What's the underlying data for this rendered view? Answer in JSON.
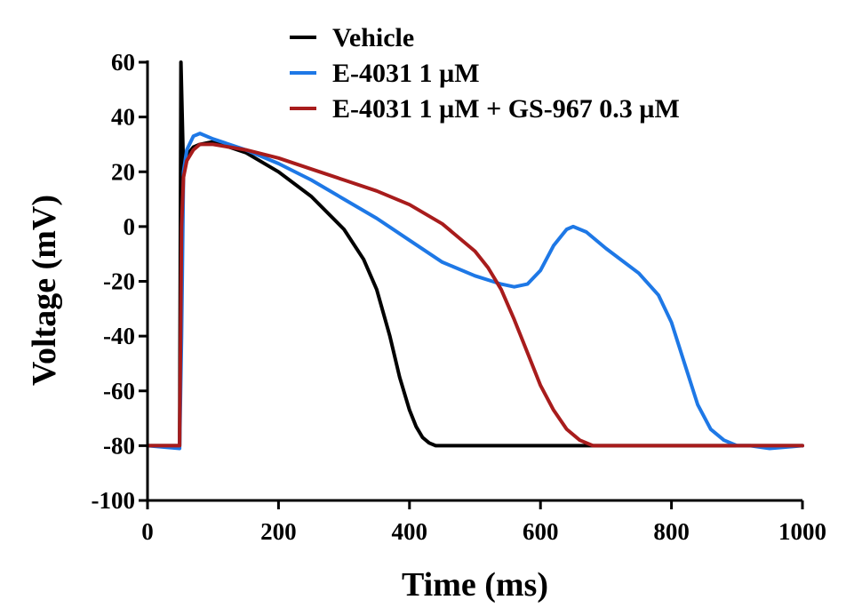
{
  "chart_data": {
    "type": "line",
    "title": "",
    "xlabel": "Time (ms)",
    "ylabel": "Voltage (mV)",
    "xlim": [
      0,
      1000
    ],
    "ylim": [
      -100,
      60
    ],
    "xticks": [
      0,
      200,
      400,
      600,
      800,
      1000
    ],
    "yticks": [
      60,
      40,
      20,
      0,
      -20,
      -40,
      -60,
      -80,
      -100
    ],
    "grid": false,
    "legend_position": "top-center",
    "series": [
      {
        "name": "Vehicle",
        "color": "#000000",
        "x": [
          0,
          49,
          50,
          51,
          55,
          60,
          70,
          80,
          100,
          150,
          200,
          250,
          300,
          330,
          350,
          370,
          385,
          400,
          410,
          420,
          430,
          440,
          450,
          460,
          480,
          500,
          600,
          700,
          800,
          900,
          1000
        ],
        "y": [
          -80,
          -80,
          -20,
          60,
          20,
          26,
          29,
          30,
          31,
          27,
          20,
          11,
          -1,
          -12,
          -23,
          -40,
          -55,
          -67,
          -73,
          -77,
          -79,
          -80,
          -80,
          -80,
          -80,
          -80,
          -80,
          -80,
          -80,
          -80,
          -80
        ]
      },
      {
        "name": "E-4031 1 µM",
        "color": "#1e78e6",
        "x": [
          0,
          49,
          52,
          55,
          60,
          70,
          80,
          100,
          150,
          200,
          250,
          300,
          350,
          400,
          450,
          500,
          540,
          560,
          580,
          600,
          620,
          640,
          650,
          670,
          700,
          750,
          780,
          800,
          820,
          840,
          860,
          880,
          900,
          920,
          950,
          1000
        ],
        "y": [
          -80,
          -81,
          -40,
          20,
          28,
          33,
          34,
          32,
          28,
          23,
          17,
          10,
          3,
          -5,
          -13,
          -18,
          -21,
          -22,
          -21,
          -16,
          -7,
          -1,
          0,
          -2,
          -8,
          -17,
          -25,
          -35,
          -50,
          -65,
          -74,
          -78,
          -80,
          -80,
          -81,
          -80
        ]
      },
      {
        "name": "E-4031 1 µM + GS-967 0.3 µM",
        "color": "#a81c1c",
        "x": [
          0,
          49,
          52,
          55,
          60,
          70,
          80,
          100,
          150,
          200,
          250,
          300,
          350,
          400,
          450,
          500,
          520,
          540,
          560,
          580,
          600,
          620,
          640,
          660,
          680,
          700,
          750,
          800,
          900,
          1000
        ],
        "y": [
          -80,
          -80,
          0,
          18,
          24,
          28,
          30,
          30,
          28,
          25,
          21,
          17,
          13,
          8,
          1,
          -9,
          -15,
          -23,
          -34,
          -46,
          -58,
          -67,
          -74,
          -78,
          -80,
          -80,
          -80,
          -80,
          -80,
          -80
        ]
      }
    ]
  }
}
